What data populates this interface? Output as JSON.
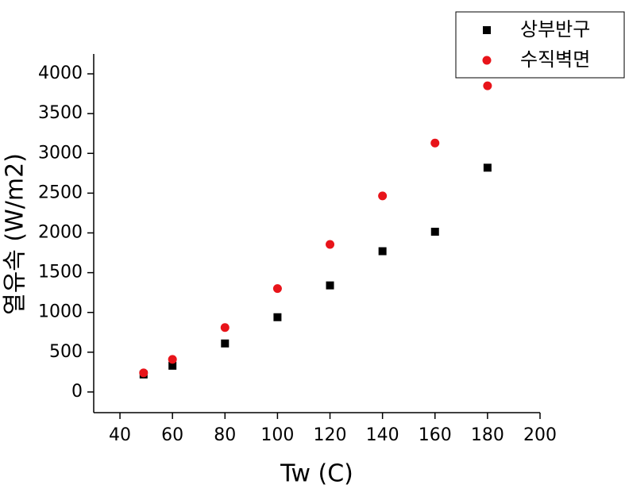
{
  "chart_data": {
    "type": "scatter",
    "x_label": "Tw (C)",
    "y_label": "열유속 (W/m2)",
    "xlim": [
      30,
      200
    ],
    "xticks": [
      40,
      60,
      80,
      100,
      120,
      140,
      160,
      180,
      200
    ],
    "ylim": [
      -260,
      4250
    ],
    "yticks": [
      0,
      500,
      1000,
      1500,
      2000,
      2500,
      3000,
      3500,
      4000
    ],
    "legend": "upper right",
    "series": [
      {
        "name": "상부반구",
        "color": "#000000",
        "marker": "square",
        "x": [
          49,
          60,
          80,
          100,
          120,
          140,
          160,
          180
        ],
        "values": [
          220,
          330,
          610,
          940,
          1340,
          1770,
          2015,
          2820
        ]
      },
      {
        "name": "수직벽면",
        "color": "#e8141a",
        "marker": "circle",
        "x": [
          49,
          60,
          80,
          100,
          120,
          140,
          160,
          180
        ],
        "values": [
          240,
          410,
          810,
          1300,
          1855,
          2465,
          3130,
          3850
        ]
      }
    ]
  }
}
